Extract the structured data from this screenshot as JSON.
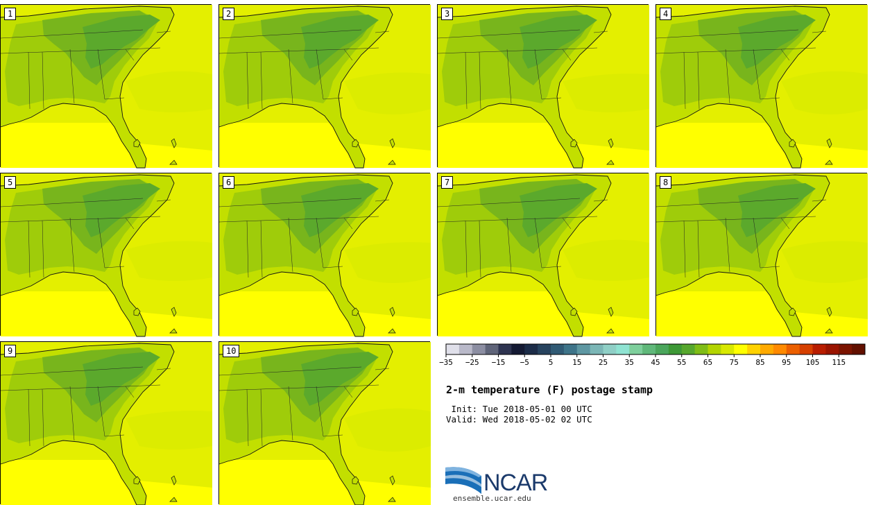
{
  "figure": {
    "title": "2-m temperature (F) postage stamp",
    "init": " Init: Tue 2018-05-01 00 UTC",
    "valid": "Valid: Wed 2018-05-02 02 UTC"
  },
  "members": [
    "1",
    "2",
    "3",
    "4",
    "5",
    "6",
    "7",
    "8",
    "9",
    "10"
  ],
  "colorbar": {
    "ticks": [
      "−35",
      "−25",
      "−15",
      "−5",
      "5",
      "15",
      "25",
      "35",
      "45",
      "55",
      "65",
      "75",
      "85",
      "95",
      "105",
      "115"
    ],
    "tick_values": [
      -35,
      -25,
      -15,
      -5,
      5,
      15,
      25,
      35,
      45,
      55,
      65,
      75,
      85,
      95,
      105,
      115
    ],
    "min": -35,
    "max": 125,
    "step": 5,
    "colors": [
      "#e0e0ea",
      "#b9b9c9",
      "#8c8ea2",
      "#5f6479",
      "#2e3450",
      "#141a33",
      "#1c2c48",
      "#27435e",
      "#305a74",
      "#3e7489",
      "#5e97a2",
      "#7bb6b6",
      "#8fcfc6",
      "#8fe3d2",
      "#7ecf9c",
      "#60b87a",
      "#4ba65c",
      "#3d9836",
      "#56a72d",
      "#7fbd16",
      "#b3d400",
      "#d8e800",
      "#ffff00",
      "#ffd200",
      "#ffaa00",
      "#ff8a00",
      "#ec6000",
      "#d64000",
      "#b81d00",
      "#9a1400",
      "#7b1400",
      "#621000"
    ]
  },
  "logo": {
    "name": "NCAR",
    "url": "ensemble.ucar.edu"
  },
  "colors": {
    "gulf_ocean": "#ffff00",
    "warm_ocean": "#e4ef00",
    "coastal_land": "#c2df00",
    "land": "#9fcc0a",
    "cool_land": "#78b51c",
    "mountains": "#5ba92c"
  }
}
